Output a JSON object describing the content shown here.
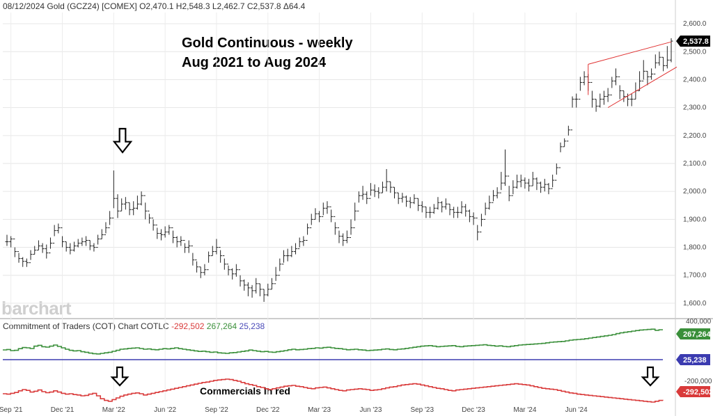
{
  "header": {
    "line": "08/12/2024 Gold (GCZ24) [COMEX] O2,470.1 H2,548.3 L2,462.7 C2,537.8 Δ64.4"
  },
  "annotations": {
    "title_line1": "Gold Continuous - weekly",
    "title_line2": "Aug 2021 to Aug 2024",
    "commercials": "Commercials in red"
  },
  "watermark": "barchart",
  "cot": {
    "label": "Commitment of Traders (COT) Chart COTLC",
    "commercials_value": "-292,502",
    "large_spec_value": "267,264",
    "small_spec_value": "25,238"
  },
  "colors": {
    "price": "#222222",
    "trendline": "#e03030",
    "large_spec": "#3a8f3a",
    "small_spec": "#3b3bb0",
    "commercials": "#d93a3a",
    "last_price_badge": "#000000"
  },
  "chart_data": [
    {
      "type": "ohlc",
      "last_price": "2,537.8",
      "y_ticks": [
        "2,600.0",
        "2,500.0",
        "2,400.0",
        "2,300.0",
        "2,200.0",
        "2,100.0",
        "2,000.0",
        "1,900.0",
        "1,800.0",
        "1,700.0",
        "1,600.0"
      ],
      "ylim": [
        1560,
        2640
      ],
      "x_ticks": [
        "Sep '21",
        "Dec '21",
        "Mar '22",
        "Jun '22",
        "Sep '22",
        "Dec '22",
        "Mar '23",
        "Jun '23",
        "Sep '23",
        "Dec '23",
        "Mar '24",
        "Jun '24"
      ],
      "x_tick_weeks": [
        1,
        14,
        27,
        40,
        53,
        66,
        79,
        92,
        105,
        118,
        131,
        144
      ],
      "weekly_close": [
        1820,
        1830,
        1785,
        1760,
        1750,
        1745,
        1775,
        1790,
        1805,
        1795,
        1780,
        1815,
        1860,
        1870,
        1820,
        1800,
        1790,
        1805,
        1815,
        1820,
        1825,
        1805,
        1800,
        1830,
        1845,
        1870,
        1905,
        1975,
        1930,
        1955,
        1960,
        1935,
        1940,
        1955,
        1985,
        1930,
        1905,
        1880,
        1850,
        1845,
        1855,
        1870,
        1835,
        1820,
        1825,
        1800,
        1805,
        1755,
        1730,
        1710,
        1720,
        1770,
        1785,
        1800,
        1770,
        1740,
        1720,
        1705,
        1720,
        1680,
        1665,
        1655,
        1645,
        1670,
        1650,
        1630,
        1650,
        1670,
        1700,
        1740,
        1770,
        1770,
        1785,
        1795,
        1820,
        1825,
        1870,
        1900,
        1920,
        1910,
        1940,
        1945,
        1910,
        1870,
        1840,
        1825,
        1835,
        1870,
        1930,
        1985,
        1990,
        1975,
        2005,
        2000,
        1995,
        2015,
        2035,
        2015,
        1995,
        1975,
        1980,
        1965,
        1960,
        1975,
        1950,
        1945,
        1925,
        1925,
        1940,
        1960,
        1945,
        1955,
        1935,
        1925,
        1925,
        1945,
        1930,
        1910,
        1905,
        1855,
        1900,
        1940,
        1960,
        1985,
        1995,
        2030,
        2055,
        1985,
        2015,
        2035,
        2040,
        2030,
        2020,
        2045,
        2030,
        2015,
        2025,
        2010,
        2040,
        2085,
        2160,
        2180,
        2220,
        2330,
        2330,
        2390,
        2410,
        2390,
        2330,
        2305,
        2330,
        2340,
        2345,
        2395,
        2410,
        2360,
        2340,
        2330,
        2330,
        2360,
        2395,
        2430,
        2410,
        2420,
        2460,
        2480,
        2450,
        2470,
        2537.8
      ],
      "weekly_high": [
        1845,
        1840,
        1800,
        1780,
        1765,
        1760,
        1790,
        1805,
        1825,
        1815,
        1810,
        1835,
        1880,
        1885,
        1840,
        1820,
        1815,
        1820,
        1830,
        1835,
        1840,
        1825,
        1815,
        1845,
        1865,
        1890,
        1930,
        2075,
        1990,
        1975,
        1980,
        1960,
        1965,
        1985,
        2000,
        1960,
        1920,
        1900,
        1870,
        1865,
        1875,
        1880,
        1860,
        1840,
        1840,
        1815,
        1825,
        1780,
        1750,
        1730,
        1740,
        1785,
        1805,
        1830,
        1790,
        1760,
        1735,
        1725,
        1740,
        1700,
        1685,
        1675,
        1665,
        1690,
        1670,
        1650,
        1670,
        1690,
        1730,
        1760,
        1790,
        1795,
        1805,
        1815,
        1835,
        1840,
        1885,
        1920,
        1940,
        1930,
        1960,
        1965,
        1935,
        1890,
        1860,
        1850,
        1860,
        1900,
        1960,
        2000,
        2020,
        2000,
        2030,
        2025,
        2015,
        2035,
        2080,
        2035,
        2015,
        1995,
        1995,
        1985,
        1980,
        1990,
        1975,
        1965,
        1945,
        1945,
        1955,
        1980,
        1965,
        1975,
        1955,
        1945,
        1945,
        1965,
        1955,
        1935,
        1925,
        1880,
        1920,
        1960,
        1985,
        2005,
        2015,
        2070,
        2150,
        2020,
        2040,
        2060,
        2060,
        2050,
        2045,
        2070,
        2050,
        2035,
        2045,
        2030,
        2060,
        2100,
        2175,
        2190,
        2235,
        2340,
        2350,
        2410,
        2430,
        2420,
        2360,
        2330,
        2350,
        2360,
        2370,
        2410,
        2440,
        2380,
        2360,
        2350,
        2350,
        2390,
        2430,
        2470,
        2430,
        2440,
        2490,
        2500,
        2480,
        2520,
        2548
      ],
      "weekly_low": [
        1805,
        1800,
        1765,
        1745,
        1730,
        1730,
        1755,
        1775,
        1790,
        1780,
        1760,
        1795,
        1840,
        1850,
        1800,
        1785,
        1775,
        1785,
        1800,
        1805,
        1805,
        1790,
        1785,
        1810,
        1830,
        1850,
        1880,
        1940,
        1905,
        1930,
        1935,
        1915,
        1915,
        1935,
        1950,
        1900,
        1885,
        1860,
        1830,
        1825,
        1835,
        1845,
        1815,
        1800,
        1805,
        1780,
        1780,
        1735,
        1710,
        1690,
        1700,
        1745,
        1770,
        1775,
        1745,
        1720,
        1700,
        1685,
        1695,
        1660,
        1645,
        1625,
        1620,
        1635,
        1625,
        1605,
        1625,
        1650,
        1680,
        1715,
        1745,
        1750,
        1765,
        1775,
        1800,
        1805,
        1845,
        1880,
        1900,
        1890,
        1915,
        1920,
        1890,
        1845,
        1815,
        1805,
        1815,
        1845,
        1895,
        1960,
        1970,
        1955,
        1985,
        1980,
        1975,
        1995,
        2000,
        1995,
        1975,
        1955,
        1960,
        1945,
        1940,
        1955,
        1930,
        1925,
        1905,
        1905,
        1920,
        1935,
        1925,
        1935,
        1915,
        1905,
        1905,
        1920,
        1910,
        1890,
        1880,
        1825,
        1875,
        1915,
        1935,
        1965,
        1975,
        2005,
        2020,
        1965,
        1990,
        2010,
        2015,
        2010,
        2000,
        2020,
        2005,
        1995,
        2000,
        1990,
        2015,
        2060,
        2140,
        2160,
        2200,
        2300,
        2300,
        2360,
        2380,
        2360,
        2300,
        2285,
        2300,
        2310,
        2320,
        2370,
        2380,
        2330,
        2320,
        2305,
        2305,
        2330,
        2360,
        2400,
        2380,
        2400,
        2440,
        2450,
        2430,
        2440,
        2462
      ]
    },
    {
      "type": "line",
      "series": [
        {
          "name": "Large Speculators",
          "color": "#3a8f3a",
          "label": "267,264",
          "values": [
            235,
            238,
            230,
            232,
            244,
            252,
            250,
            245,
            262,
            268,
            258,
            255,
            262,
            270,
            260,
            250,
            240,
            232,
            228,
            230,
            222,
            218,
            212,
            208,
            206,
            210,
            214,
            218,
            225,
            232,
            240,
            242,
            246,
            248,
            250,
            245,
            240,
            242,
            238,
            236,
            240,
            244,
            242,
            246,
            250,
            244,
            240,
            236,
            232,
            228,
            224,
            226,
            222,
            218,
            220,
            214,
            212,
            210,
            214,
            216,
            220,
            224,
            228,
            234,
            230,
            226,
            222,
            224,
            220,
            218,
            222,
            226,
            230,
            236,
            240,
            236,
            238,
            240,
            244,
            246,
            250,
            248,
            252,
            254,
            250,
            246,
            244,
            240,
            236,
            238,
            240,
            236,
            234,
            230,
            232,
            234,
            236,
            240,
            242,
            238,
            236,
            240,
            242,
            246,
            250,
            254,
            258,
            262,
            264,
            266,
            262,
            258,
            260,
            262,
            264,
            266,
            260,
            258,
            262,
            264,
            266,
            268,
            270,
            272,
            268,
            266,
            262,
            264,
            260,
            258,
            262,
            266,
            270,
            272,
            274,
            276,
            278,
            280,
            282,
            286,
            290,
            292,
            294,
            296,
            300,
            305,
            308,
            310,
            312,
            316,
            320,
            324,
            328,
            332,
            336,
            340,
            345,
            352,
            358,
            362,
            366,
            370,
            374,
            378,
            380,
            382,
            384,
            376,
            380,
            267
          ]
        }
      ],
      "ylim": [
        0,
        460
      ]
    },
    {
      "type": "line",
      "series": [
        {
          "name": "Small Speculators",
          "color": "#3b3bb0",
          "label": "25,238",
          "values": [
            25,
            25,
            25,
            25,
            25,
            25,
            25,
            25,
            25,
            25,
            25,
            25,
            25,
            25,
            25,
            25,
            25,
            25,
            25,
            25,
            25,
            25,
            25,
            25,
            25,
            25,
            25,
            25,
            25,
            25,
            25,
            25,
            25,
            25,
            25,
            25,
            25,
            25,
            25,
            25,
            25,
            25,
            25,
            25,
            25,
            25,
            25,
            25,
            25,
            25,
            25,
            25,
            25,
            25,
            25,
            25,
            25,
            25,
            25,
            25,
            25,
            25,
            25,
            25,
            25,
            25,
            25,
            25,
            25,
            25,
            25,
            25,
            25,
            25,
            25,
            25,
            25,
            25,
            25,
            25,
            25,
            25,
            25,
            25,
            25,
            25,
            25,
            25,
            25,
            25,
            25,
            25,
            25,
            25,
            25,
            25,
            25,
            25,
            25,
            25,
            25,
            25,
            25,
            25,
            25,
            25,
            25,
            25,
            25,
            25,
            25,
            25,
            25,
            25,
            25,
            25,
            25,
            25,
            25,
            25,
            25,
            25,
            25,
            25,
            25,
            25,
            25,
            25,
            25,
            25,
            25,
            25,
            25,
            25,
            25,
            25,
            25,
            25,
            25,
            25,
            25,
            25,
            25,
            25,
            25,
            25,
            25,
            25,
            25,
            25,
            25,
            25,
            25,
            25,
            25,
            25,
            25,
            25,
            25,
            25,
            25,
            25,
            25,
            25,
            25,
            25,
            25,
            25,
            25,
            25,
            25
          ]
        }
      ]
    },
    {
      "type": "line",
      "series": [
        {
          "name": "Commercials",
          "color": "#d93a3a",
          "label": "-292,502",
          "values": [
            -260,
            -262,
            -258,
            -254,
            -246,
            -240,
            -244,
            -252,
            -248,
            -242,
            -250,
            -255,
            -252,
            -246,
            -252,
            -258,
            -262,
            -260,
            -264,
            -266,
            -270,
            -268,
            -262,
            -258,
            -270,
            -284,
            -292,
            -296,
            -288,
            -280,
            -272,
            -266,
            -262,
            -258,
            -256,
            -260,
            -266,
            -262,
            -258,
            -254,
            -250,
            -246,
            -242,
            -238,
            -234,
            -230,
            -226,
            -222,
            -218,
            -214,
            -210,
            -206,
            -204,
            -200,
            -196,
            -194,
            -192,
            -190,
            -192,
            -196,
            -200,
            -206,
            -212,
            -216,
            -220,
            -226,
            -230,
            -236,
            -240,
            -236,
            -232,
            -228,
            -224,
            -222,
            -220,
            -224,
            -226,
            -230,
            -234,
            -236,
            -232,
            -230,
            -228,
            -232,
            -236,
            -240,
            -244,
            -246,
            -242,
            -240,
            -238,
            -236,
            -238,
            -240,
            -244,
            -242,
            -240,
            -236,
            -232,
            -228,
            -226,
            -222,
            -218,
            -216,
            -214,
            -212,
            -214,
            -218,
            -222,
            -226,
            -230,
            -234,
            -236,
            -240,
            -244,
            -246,
            -242,
            -240,
            -238,
            -236,
            -234,
            -232,
            -230,
            -228,
            -226,
            -224,
            -222,
            -220,
            -218,
            -216,
            -214,
            -212,
            -214,
            -216,
            -218,
            -222,
            -226,
            -230,
            -234,
            -236,
            -238,
            -240,
            -244,
            -248,
            -252,
            -256,
            -258,
            -262,
            -264,
            -266,
            -268,
            -270,
            -272,
            -274,
            -276,
            -278,
            -280,
            -282,
            -284,
            -286,
            -288,
            -290,
            -292,
            -294,
            -296,
            -298,
            -300,
            -296,
            -292,
            -292.502
          ]
        }
      ],
      "y_tick": "-200,000",
      "y_tick_top": "400,000"
    }
  ]
}
